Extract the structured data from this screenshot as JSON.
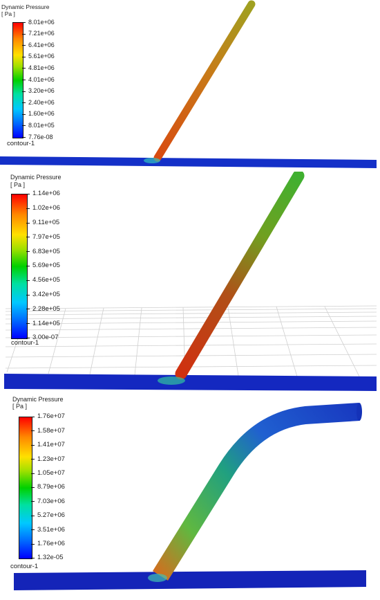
{
  "panels": [
    {
      "title": "Dynamic Pressure",
      "units": "[ Pa ]",
      "ticks": [
        "8.01e+06",
        "7.21e+06",
        "6.41e+06",
        "5.61e+06",
        "4.81e+06",
        "4.01e+06",
        "3.20e+06",
        "2.40e+06",
        "1.60e+06",
        "8.01e+05",
        "7.76e-08"
      ],
      "contour_label": "contour-1"
    },
    {
      "title": "Dynamic Pressure",
      "units": "[ Pa ]",
      "ticks": [
        "1.14e+06",
        "1.02e+06",
        "9.11e+05",
        "7.97e+05",
        "6.83e+05",
        "5.69e+05",
        "4.56e+05",
        "3.42e+05",
        "2.28e+05",
        "1.14e+05",
        "3.00e-07"
      ],
      "contour_label": "contour-1"
    },
    {
      "title": "Dynamic Pressure",
      "units": "[ Pa ]",
      "ticks": [
        "1.76e+07",
        "1.58e+07",
        "1.41e+07",
        "1.23e+07",
        "1.05e+07",
        "8.79e+06",
        "7.03e+06",
        "5.27e+06",
        "3.51e+06",
        "1.76e+06",
        "1.32e-05"
      ],
      "contour_label": "contour-1"
    }
  ]
}
